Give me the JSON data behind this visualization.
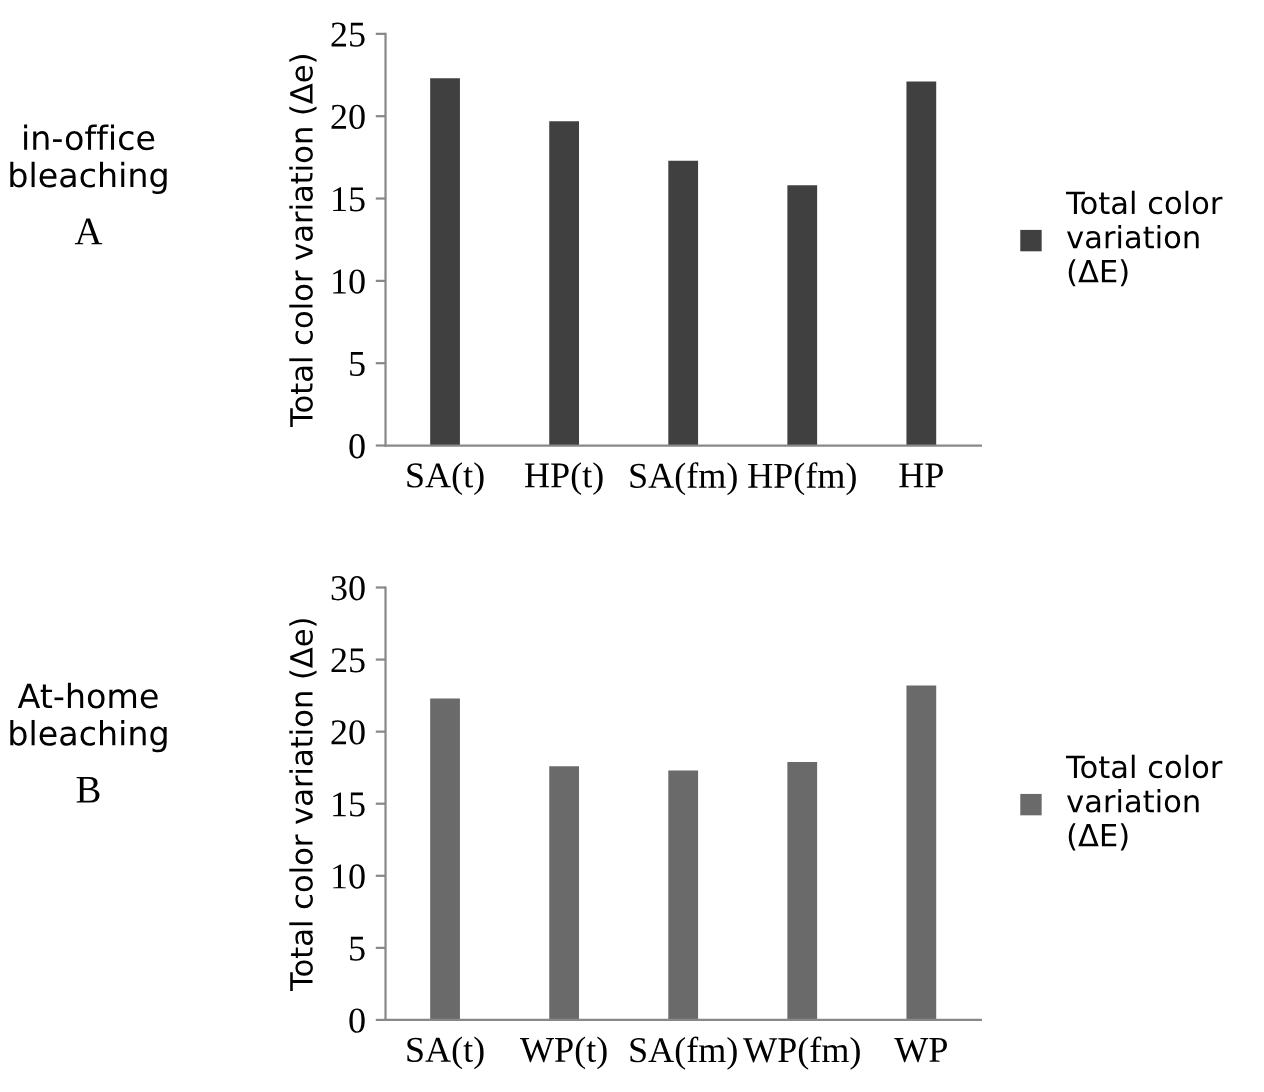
{
  "chart_data": [
    {
      "type": "bar",
      "ylabel": "Total color variation (Δe)",
      "categories": [
        "SA(t)",
        "HP(t)",
        "SA(fm)",
        "HP(fm)",
        "HP"
      ],
      "series": [
        {
          "name": "Total color variation (ΔE)",
          "color": "#404040",
          "values": [
            22.3,
            19.7,
            17.3,
            15.8,
            22.1
          ]
        }
      ],
      "ylim": [
        0,
        25
      ],
      "yticks": [
        0,
        5,
        10,
        15,
        20,
        25
      ],
      "grid": false,
      "legend": "right",
      "annotations": [
        "in-office bleaching",
        "A"
      ]
    },
    {
      "type": "bar",
      "ylabel": "Total color variation (Δe)",
      "categories": [
        "SA(t)",
        "WP(t)",
        "SA(fm)",
        "WP(fm)",
        "WP"
      ],
      "series": [
        {
          "name": "Total color variation (ΔE)",
          "color": "#6a6a6a",
          "values": [
            22.3,
            17.6,
            17.3,
            17.9,
            23.2
          ]
        }
      ],
      "ylim": [
        0,
        30
      ],
      "yticks": [
        0,
        5,
        10,
        15,
        20,
        25,
        30
      ],
      "grid": false,
      "legend": "right",
      "annotations": [
        "At-home bleaching",
        "B"
      ]
    }
  ]
}
